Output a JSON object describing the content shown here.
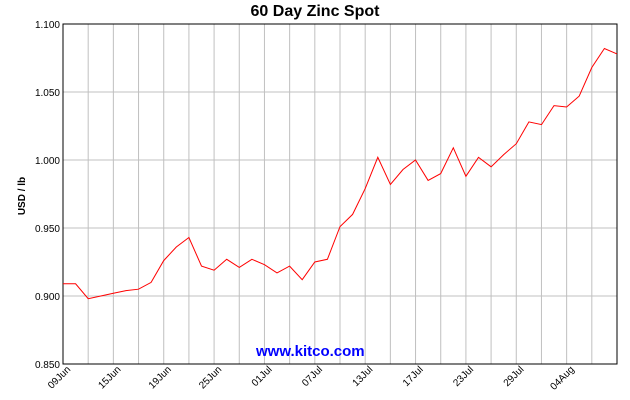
{
  "chart_data": {
    "type": "line",
    "title": "60 Day Zinc Spot",
    "ylabel": "USD / lb",
    "xlabel": "",
    "ylim": [
      0.85,
      1.1
    ],
    "y_ticks": [
      "1.100",
      "1.050",
      "1.000",
      "0.950",
      "0.900",
      "0.850"
    ],
    "x_tick_labels": [
      "09Jun",
      "15Jun",
      "19Jun",
      "25Jun",
      "01Jul",
      "07Jul",
      "13Jul",
      "17Jul",
      "23Jul",
      "29Jul",
      "04Aug"
    ],
    "grid": true,
    "line_color": "#ff0000",
    "series": [
      {
        "values": [
          0.909,
          0.909,
          0.898,
          0.9,
          0.902,
          0.904,
          0.905,
          0.91,
          0.926,
          0.936,
          0.943,
          0.922,
          0.919,
          0.927,
          0.921,
          0.927,
          0.923,
          0.917,
          0.922,
          0.912,
          0.925,
          0.927,
          0.951,
          0.96,
          0.979,
          1.002,
          0.982,
          0.993,
          1.0,
          0.985,
          0.99,
          1.009,
          0.988,
          1.002,
          0.995,
          1.004,
          1.012,
          1.028,
          1.026,
          1.04,
          1.039,
          1.047,
          1.068,
          1.082,
          1.078
        ]
      }
    ]
  },
  "watermark": "www.kitco.com"
}
